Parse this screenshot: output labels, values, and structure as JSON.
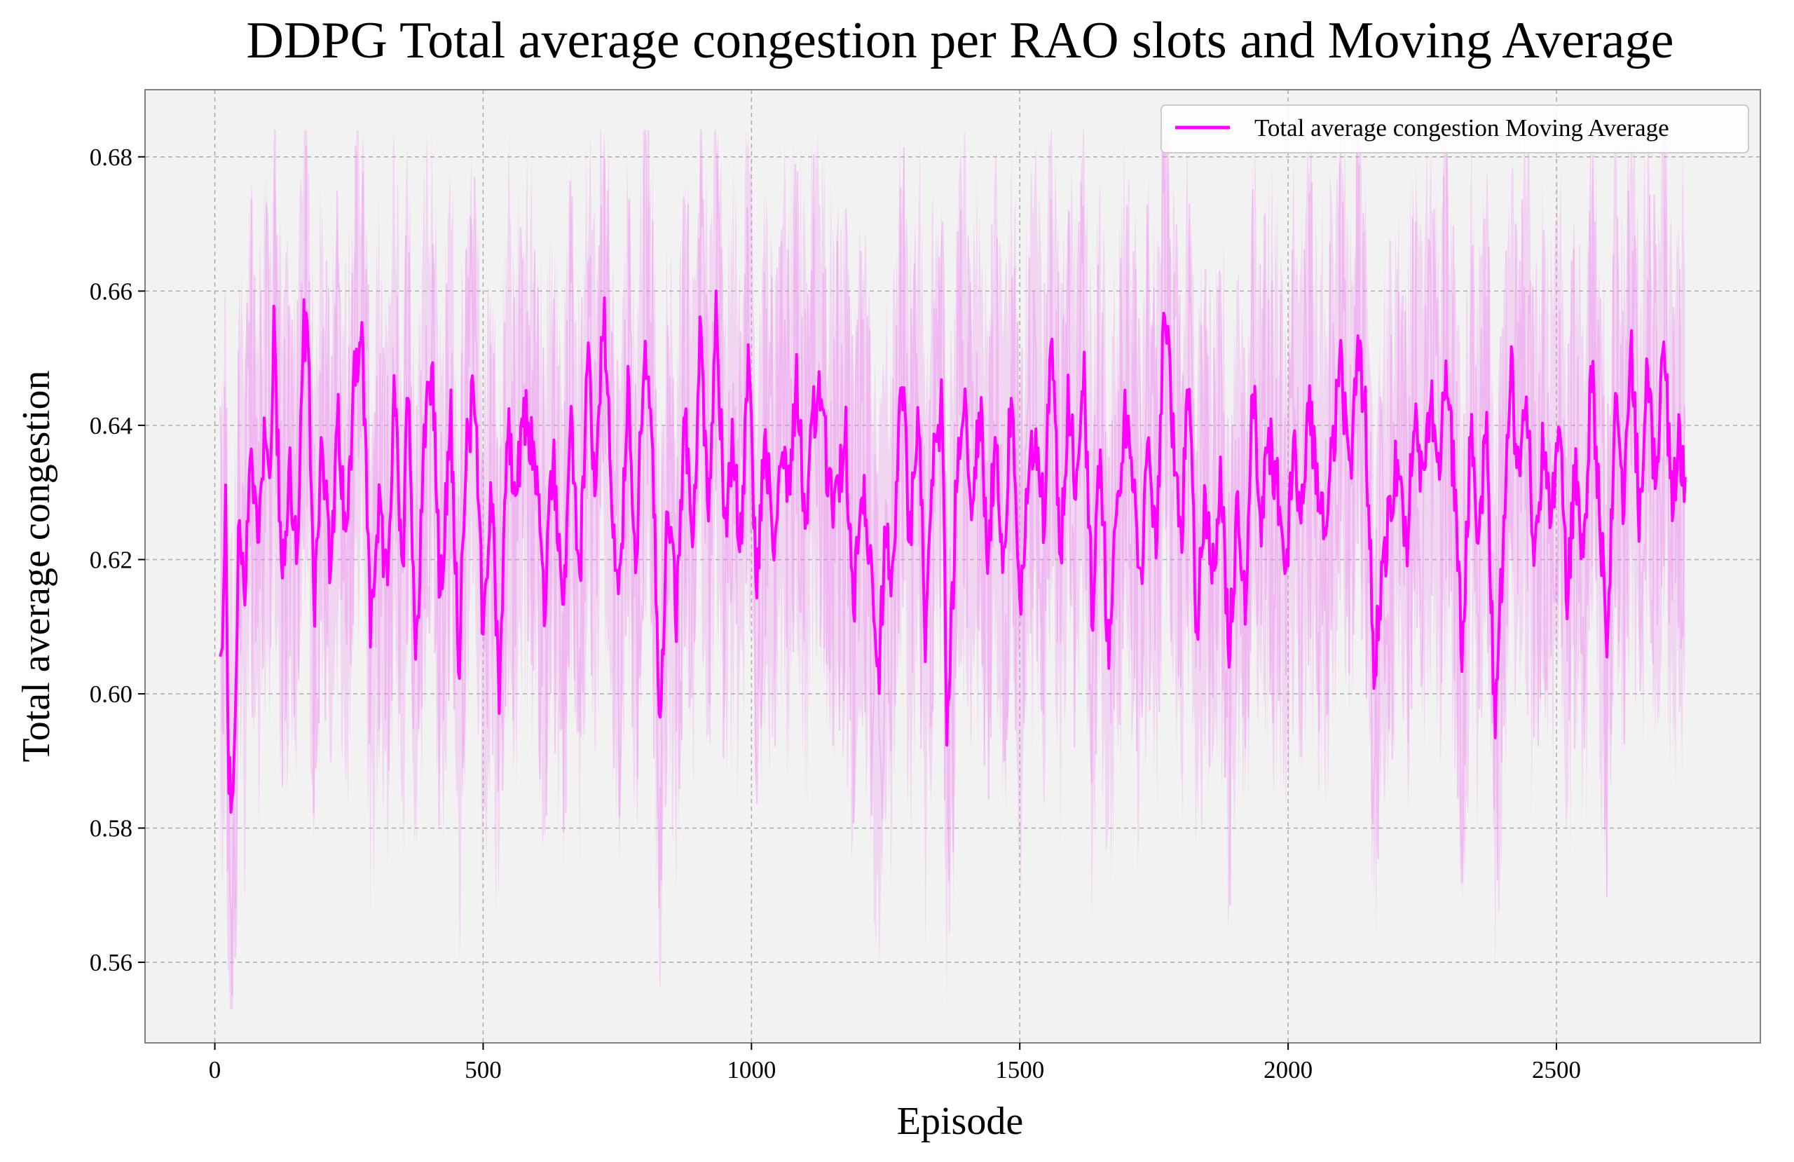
{
  "chart_data": {
    "type": "line",
    "title": "DDPG Total average congestion per RAO slots and Moving Average",
    "xlabel": "Episode",
    "ylabel": "Total average congestion",
    "xlim": [
      -130,
      2880
    ],
    "ylim": [
      0.548,
      0.69
    ],
    "xticks": [
      0,
      500,
      1000,
      1500,
      2000,
      2500
    ],
    "yticks": [
      0.56,
      0.58,
      0.6,
      0.62,
      0.64,
      0.66,
      0.68
    ],
    "ytick_labels": [
      "0.56",
      "0.58",
      "0.60",
      "0.62",
      "0.64",
      "0.66",
      "0.68"
    ],
    "grid": true,
    "legend": {
      "position": "top-right",
      "entries": [
        "Total average congestion Moving Average"
      ]
    },
    "episodes": [
      10,
      2740
    ],
    "series": [
      {
        "name": "Total average congestion Moving Average",
        "color": "#ff00ff",
        "points": [
          [
            10,
            0.604
          ],
          [
            15,
            0.605
          ],
          [
            20,
            0.635
          ],
          [
            25,
            0.59
          ],
          [
            30,
            0.583
          ],
          [
            35,
            0.585
          ],
          [
            45,
            0.626
          ],
          [
            55,
            0.613
          ],
          [
            65,
            0.637
          ],
          [
            80,
            0.624
          ],
          [
            95,
            0.642
          ],
          [
            105,
            0.631
          ],
          [
            110,
            0.657
          ],
          [
            125,
            0.615
          ],
          [
            140,
            0.634
          ],
          [
            155,
            0.618
          ],
          [
            165,
            0.656
          ],
          [
            175,
            0.648
          ],
          [
            185,
            0.613
          ],
          [
            200,
            0.64
          ],
          [
            215,
            0.617
          ],
          [
            230,
            0.64
          ],
          [
            245,
            0.621
          ],
          [
            260,
            0.65
          ],
          [
            275,
            0.652
          ],
          [
            290,
            0.61
          ],
          [
            305,
            0.627
          ],
          [
            320,
            0.616
          ],
          [
            335,
            0.645
          ],
          [
            350,
            0.615
          ],
          [
            360,
            0.649
          ],
          [
            375,
            0.604
          ],
          [
            390,
            0.64
          ],
          [
            405,
            0.65
          ],
          [
            420,
            0.613
          ],
          [
            440,
            0.641
          ],
          [
            455,
            0.605
          ],
          [
            470,
            0.637
          ],
          [
            485,
            0.646
          ],
          [
            500,
            0.609
          ],
          [
            515,
            0.63
          ],
          [
            530,
            0.601
          ],
          [
            545,
            0.64
          ],
          [
            560,
            0.629
          ],
          [
            580,
            0.642
          ],
          [
            600,
            0.632
          ],
          [
            615,
            0.612
          ],
          [
            630,
            0.637
          ],
          [
            650,
            0.612
          ],
          [
            665,
            0.64
          ],
          [
            680,
            0.616
          ],
          [
            695,
            0.651
          ],
          [
            710,
            0.628
          ],
          [
            725,
            0.659
          ],
          [
            740,
            0.626
          ],
          [
            755,
            0.615
          ],
          [
            770,
            0.645
          ],
          [
            785,
            0.62
          ],
          [
            800,
            0.652
          ],
          [
            815,
            0.636
          ],
          [
            830,
            0.595
          ],
          [
            845,
            0.63
          ],
          [
            860,
            0.61
          ],
          [
            875,
            0.642
          ],
          [
            890,
            0.622
          ],
          [
            905,
            0.654
          ],
          [
            920,
            0.628
          ],
          [
            935,
            0.658
          ],
          [
            950,
            0.624
          ],
          [
            965,
            0.637
          ],
          [
            980,
            0.622
          ],
          [
            995,
            0.65
          ],
          [
            1010,
            0.614
          ],
          [
            1025,
            0.641
          ],
          [
            1040,
            0.62
          ],
          [
            1055,
            0.636
          ],
          [
            1070,
            0.632
          ],
          [
            1085,
            0.648
          ],
          [
            1100,
            0.625
          ],
          [
            1115,
            0.641
          ],
          [
            1130,
            0.645
          ],
          [
            1145,
            0.629
          ],
          [
            1160,
            0.628
          ],
          [
            1175,
            0.64
          ],
          [
            1190,
            0.612
          ],
          [
            1205,
            0.634
          ],
          [
            1220,
            0.62
          ],
          [
            1235,
            0.6
          ],
          [
            1250,
            0.624
          ],
          [
            1265,
            0.616
          ],
          [
            1280,
            0.65
          ],
          [
            1295,
            0.622
          ],
          [
            1310,
            0.644
          ],
          [
            1325,
            0.607
          ],
          [
            1340,
            0.637
          ],
          [
            1355,
            0.643
          ],
          [
            1365,
            0.592
          ],
          [
            1380,
            0.627
          ],
          [
            1395,
            0.646
          ],
          [
            1410,
            0.625
          ],
          [
            1425,
            0.644
          ],
          [
            1440,
            0.622
          ],
          [
            1455,
            0.636
          ],
          [
            1470,
            0.619
          ],
          [
            1485,
            0.647
          ],
          [
            1500,
            0.611
          ],
          [
            1515,
            0.63
          ],
          [
            1530,
            0.64
          ],
          [
            1545,
            0.626
          ],
          [
            1560,
            0.656
          ],
          [
            1575,
            0.618
          ],
          [
            1590,
            0.644
          ],
          [
            1605,
            0.631
          ],
          [
            1620,
            0.648
          ],
          [
            1635,
            0.612
          ],
          [
            1650,
            0.638
          ],
          [
            1665,
            0.606
          ],
          [
            1680,
            0.625
          ],
          [
            1695,
            0.642
          ],
          [
            1710,
            0.631
          ],
          [
            1725,
            0.618
          ],
          [
            1740,
            0.635
          ],
          [
            1755,
            0.624
          ],
          [
            1770,
            0.658
          ],
          [
            1785,
            0.64
          ],
          [
            1800,
            0.622
          ],
          [
            1815,
            0.646
          ],
          [
            1830,
            0.609
          ],
          [
            1845,
            0.63
          ],
          [
            1860,
            0.618
          ],
          [
            1875,
            0.632
          ],
          [
            1890,
            0.605
          ],
          [
            1905,
            0.628
          ],
          [
            1920,
            0.614
          ],
          [
            1935,
            0.646
          ],
          [
            1950,
            0.626
          ],
          [
            1965,
            0.638
          ],
          [
            1980,
            0.631
          ],
          [
            1995,
            0.616
          ],
          [
            2010,
            0.637
          ],
          [
            2025,
            0.628
          ],
          [
            2040,
            0.644
          ],
          [
            2055,
            0.63
          ],
          [
            2070,
            0.626
          ],
          [
            2085,
            0.639
          ],
          [
            2100,
            0.649
          ],
          [
            2115,
            0.629
          ],
          [
            2130,
            0.651
          ],
          [
            2145,
            0.64
          ],
          [
            2160,
            0.604
          ],
          [
            2175,
            0.618
          ],
          [
            2190,
            0.627
          ],
          [
            2205,
            0.636
          ],
          [
            2220,
            0.621
          ],
          [
            2235,
            0.641
          ],
          [
            2250,
            0.63
          ],
          [
            2265,
            0.645
          ],
          [
            2280,
            0.634
          ],
          [
            2295,
            0.648
          ],
          [
            2310,
            0.631
          ],
          [
            2325,
            0.606
          ],
          [
            2340,
            0.639
          ],
          [
            2355,
            0.624
          ],
          [
            2370,
            0.64
          ],
          [
            2385,
            0.595
          ],
          [
            2400,
            0.622
          ],
          [
            2415,
            0.649
          ],
          [
            2430,
            0.631
          ],
          [
            2445,
            0.644
          ],
          [
            2460,
            0.618
          ],
          [
            2475,
            0.637
          ],
          [
            2490,
            0.626
          ],
          [
            2505,
            0.64
          ],
          [
            2520,
            0.614
          ],
          [
            2535,
            0.634
          ],
          [
            2550,
            0.618
          ],
          [
            2565,
            0.65
          ],
          [
            2580,
            0.628
          ],
          [
            2595,
            0.607
          ],
          [
            2610,
            0.644
          ],
          [
            2625,
            0.629
          ],
          [
            2640,
            0.651
          ],
          [
            2655,
            0.626
          ],
          [
            2670,
            0.648
          ],
          [
            2685,
            0.631
          ],
          [
            2700,
            0.652
          ],
          [
            2715,
            0.629
          ],
          [
            2730,
            0.638
          ],
          [
            2740,
            0.631
          ]
        ]
      }
    ],
    "band": {
      "color": "#ee82ee",
      "opacity": 0.25,
      "spread_upper": 0.03,
      "spread_lower": 0.03,
      "raw_max": 0.684,
      "raw_min": 0.553
    },
    "colors": {
      "plot_background": "#f2f2f2",
      "grid": "#b0b0b0",
      "frame": "#808080",
      "line": "#ff00ff",
      "band": "#ee82ee"
    }
  }
}
